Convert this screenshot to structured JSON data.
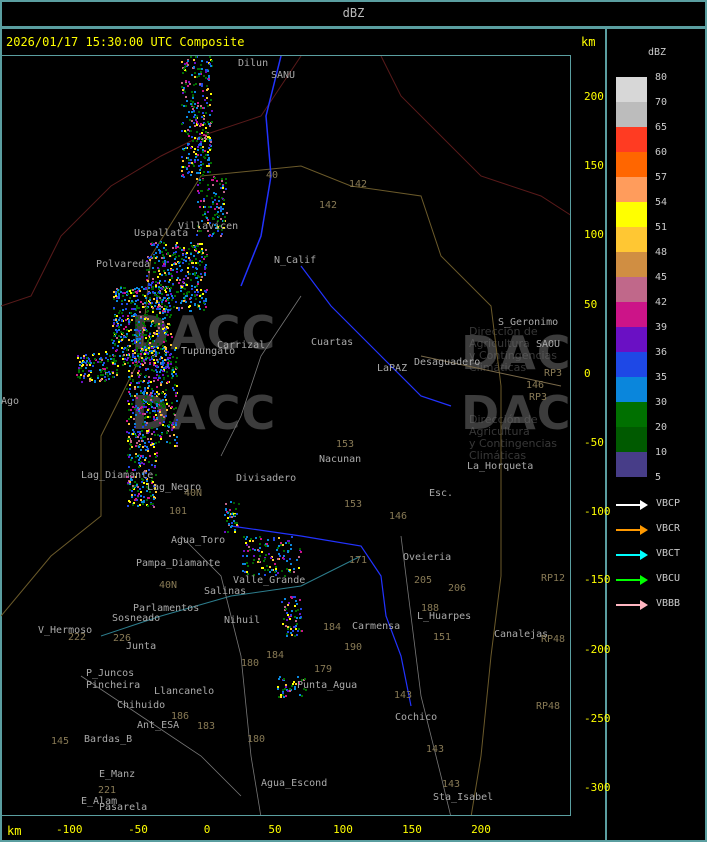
{
  "header": {
    "title": "dBZ"
  },
  "map": {
    "timestamp": "2026/01/17 15:30:00 UTC Composite",
    "unit_top": "km",
    "unit_bottom": "km",
    "x_ticks": [
      "-100",
      "-50",
      "0",
      "50",
      "100",
      "150",
      "200"
    ],
    "y_ticks": [
      "200",
      "150",
      "100",
      "50",
      "0",
      "-50",
      "-100",
      "-150",
      "-200",
      "-250",
      "-300"
    ],
    "watermark": {
      "logo_text": "DACC",
      "line1": "Dirección de Agricultura",
      "line2": "y Contingencias Climáticas"
    },
    "places": [
      "Dilun",
      "SANU",
      "Uspallata",
      "Polvareda",
      "Villavicen",
      "N_Calif",
      "S_Geronimo",
      "SAOU",
      "Desaguadero",
      "Carrizal",
      "Cuartas",
      "LaPAZ",
      "Nacunan",
      "La_Horqueta",
      "Divisadero",
      "Lag_Diamante",
      "Esc.",
      "Agua_Toro",
      "Pampa_Diamante",
      "Parlamentos",
      "Sosneado",
      "V_Hermoso",
      "Junta",
      "P_Juncos",
      "Pincheira",
      "Llancanelo",
      "Chihuido",
      "Ant_ESA",
      "Bardas_B",
      "E_Manz",
      "E_Alam",
      "Pasarela",
      "Agua_Escond",
      "Punta_Agua",
      "Cochico",
      "Sta_Isabel",
      "Canalejas",
      "L_Huarpes",
      "Carmensa",
      "Oveieria",
      "Valle_Grande",
      "Salinas",
      "Nihuil",
      "Tupungato",
      "Lag_Negro",
      "Ago"
    ],
    "routes": [
      "142",
      "142",
      "40",
      "153",
      "146",
      "153",
      "171",
      "205",
      "206",
      "188",
      "151",
      "184",
      "190",
      "179",
      "180",
      "184",
      "186",
      "183",
      "180",
      "221",
      "222",
      "226",
      "145",
      "143",
      "143",
      "143",
      "RP3",
      "RP3",
      "RP12",
      "RP48",
      "RP48",
      "146",
      "40N",
      "40N",
      "101"
    ]
  },
  "legend": {
    "title": "dBZ",
    "levels": [
      {
        "value": "80",
        "color": "#d7d7d7"
      },
      {
        "value": "70",
        "color": "#bcbcbc"
      },
      {
        "value": "65",
        "color": "#ff3b22"
      },
      {
        "value": "60",
        "color": "#ff6600"
      },
      {
        "value": "57",
        "color": "#ff9c5c"
      },
      {
        "value": "54",
        "color": "#ffff00"
      },
      {
        "value": "51",
        "color": "#ffc733"
      },
      {
        "value": "48",
        "color": "#d08e42"
      },
      {
        "value": "45",
        "color": "#c0688a"
      },
      {
        "value": "42",
        "color": "#cc1488"
      },
      {
        "value": "39",
        "color": "#6a10c4"
      },
      {
        "value": "36",
        "color": "#1e48e6"
      },
      {
        "value": "35",
        "color": "#0a86dc"
      },
      {
        "value": "30",
        "color": "#007000"
      },
      {
        "value": "20",
        "color": "#005a00"
      },
      {
        "value": "10",
        "color": "#473d88"
      }
    ],
    "min_value": "5",
    "radars": [
      {
        "name": "VBCP",
        "color": "#ffffff"
      },
      {
        "name": "VBCR",
        "color": "#ff9900"
      },
      {
        "name": "VBCT",
        "color": "#00ffff"
      },
      {
        "name": "VBCU",
        "color": "#00ff00"
      },
      {
        "name": "VBBB",
        "color": "#ffb6c1"
      }
    ]
  }
}
